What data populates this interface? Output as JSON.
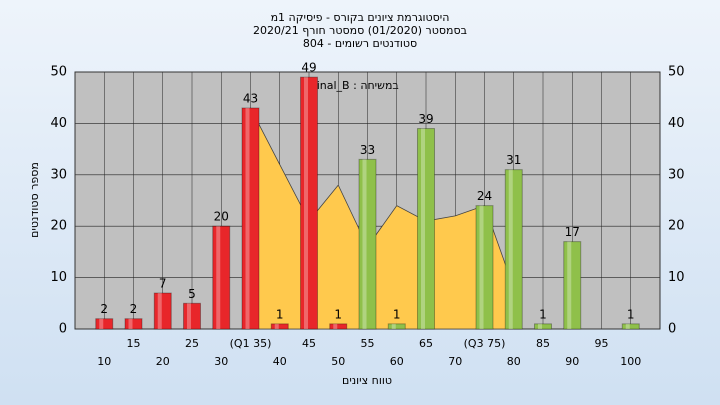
{
  "chart_data": {
    "type": "bar",
    "title": [
      "היסטוגרמת ציונים בקורס - פיסיקה 1מ",
      "בסמסטר  (01/2020)  סמסטר חורף  2020/21",
      "סטודנטים רשומים - 804"
    ],
    "annotation": "Final_B : במשיחה",
    "x_label": "טווח ציונים",
    "y_label": "מספר סטודנטים",
    "categories": [
      "10",
      "15",
      "20",
      "25",
      "30",
      "(Q1 35)",
      "40",
      "45",
      "50",
      "55",
      "60",
      "65",
      "70",
      "(Q3 75)",
      "80",
      "85",
      "90",
      "95",
      "100"
    ],
    "values": [
      2,
      2,
      7,
      5,
      20,
      43,
      1,
      49,
      1,
      33,
      1,
      39,
      null,
      24,
      31,
      1,
      17,
      null,
      1
    ],
    "colors": [
      "#e8262a",
      "#e8262a",
      "#e8262a",
      "#e8262a",
      "#e8262a",
      "#e8262a",
      "#e8262a",
      "#e8262a",
      "#e8262a",
      "#8fc04a",
      "#8fc04a",
      "#8fc04a",
      "#8fc04a",
      "#8fc04a",
      "#8fc04a",
      "#8fc04a",
      "#8fc04a",
      "#8fc04a",
      "#8fc04a"
    ],
    "area": {
      "color": "#ffc94d",
      "values": [
        null,
        null,
        null,
        null,
        null,
        43,
        32,
        21,
        28,
        16,
        24,
        21,
        22,
        24,
        8,
        null,
        null,
        null,
        null
      ]
    },
    "ylim": [
      0,
      50
    ],
    "yticks": [
      0,
      10,
      20,
      30,
      40,
      50
    ],
    "grid": true
  }
}
